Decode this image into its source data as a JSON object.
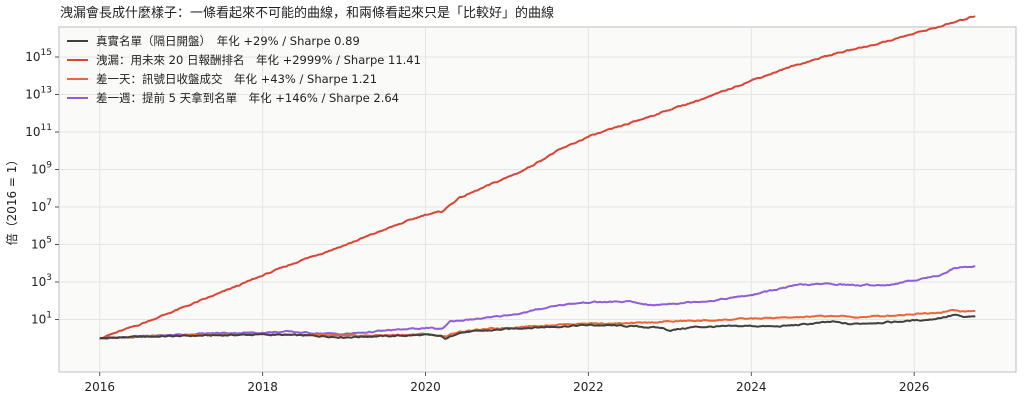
{
  "chart_data": {
    "type": "line",
    "title": "洩漏會長成什麼樣子：一條看起來不可能的曲線，和兩條看起來只是「比較好」的曲線",
    "xlabel": "",
    "ylabel": "倍（2016 = 1）",
    "yscale": "log",
    "xlim": [
      2015.5,
      2027.25
    ],
    "ylim_log10": [
      -1.8,
      16.6
    ],
    "x_ticks": [
      {
        "value": 2016,
        "label": "2016"
      },
      {
        "value": 2018,
        "label": "2018"
      },
      {
        "value": 2020,
        "label": "2020"
      },
      {
        "value": 2022,
        "label": "2022"
      },
      {
        "value": 2024,
        "label": "2024"
      },
      {
        "value": 2026,
        "label": "2026"
      }
    ],
    "y_ticks": [
      {
        "exp": 1,
        "base": "10",
        "sup": "1"
      },
      {
        "exp": 3,
        "base": "10",
        "sup": "3"
      },
      {
        "exp": 5,
        "base": "10",
        "sup": "5"
      },
      {
        "exp": 7,
        "base": "10",
        "sup": "7"
      },
      {
        "exp": 9,
        "base": "10",
        "sup": "9"
      },
      {
        "exp": 11,
        "base": "10",
        "sup": "11"
      },
      {
        "exp": 13,
        "base": "10",
        "sup": "13"
      },
      {
        "exp": 15,
        "base": "10",
        "sup": "15"
      }
    ],
    "grid": true,
    "legend_position": "top-left",
    "series": [
      {
        "name": "真實名單（隔日開盤）　年化 +29% / Sharpe 0.89",
        "color": "#404040",
        "points": [
          [
            2016.0,
            0
          ],
          [
            2016.5,
            0.08
          ],
          [
            2017.0,
            0.12
          ],
          [
            2017.5,
            0.16
          ],
          [
            2018.0,
            0.2
          ],
          [
            2018.5,
            0.15
          ],
          [
            2018.8,
            0.1
          ],
          [
            2019.0,
            0.05
          ],
          [
            2019.3,
            0.1
          ],
          [
            2019.6,
            0.12
          ],
          [
            2020.0,
            0.18
          ],
          [
            2020.2,
            0.1
          ],
          [
            2020.25,
            -0.05
          ],
          [
            2020.4,
            0.3
          ],
          [
            2020.8,
            0.42
          ],
          [
            2021.2,
            0.55
          ],
          [
            2021.6,
            0.62
          ],
          [
            2022.0,
            0.7
          ],
          [
            2022.3,
            0.68
          ],
          [
            2022.6,
            0.62
          ],
          [
            2022.9,
            0.55
          ],
          [
            2023.0,
            0.42
          ],
          [
            2023.3,
            0.6
          ],
          [
            2023.6,
            0.62
          ],
          [
            2024.0,
            0.66
          ],
          [
            2024.3,
            0.62
          ],
          [
            2024.6,
            0.72
          ],
          [
            2025.0,
            0.88
          ],
          [
            2025.2,
            0.75
          ],
          [
            2025.4,
            0.8
          ],
          [
            2025.8,
            0.88
          ],
          [
            2026.0,
            0.95
          ],
          [
            2026.2,
            1.0
          ],
          [
            2026.4,
            1.15
          ],
          [
            2026.5,
            1.25
          ],
          [
            2026.6,
            1.12
          ],
          [
            2026.75,
            1.15
          ]
        ]
      },
      {
        "name": "洩漏：用未來 20 日報酬排名　年化 +2999% / Sharpe 11.41",
        "color": "#d94535",
        "points": [
          [
            2016.0,
            0
          ],
          [
            2016.5,
            0.75
          ],
          [
            2017.0,
            1.6
          ],
          [
            2017.5,
            2.45
          ],
          [
            2018.0,
            3.35
          ],
          [
            2018.5,
            4.2
          ],
          [
            2019.0,
            4.95
          ],
          [
            2019.5,
            5.8
          ],
          [
            2020.0,
            6.6
          ],
          [
            2020.2,
            6.75
          ],
          [
            2020.4,
            7.45
          ],
          [
            2020.8,
            8.2
          ],
          [
            2021.2,
            8.95
          ],
          [
            2021.6,
            9.95
          ],
          [
            2022.0,
            10.75
          ],
          [
            2022.5,
            11.45
          ],
          [
            2023.0,
            12.2
          ],
          [
            2023.5,
            12.9
          ],
          [
            2024.0,
            13.75
          ],
          [
            2024.5,
            14.5
          ],
          [
            2025.0,
            15.15
          ],
          [
            2025.5,
            15.65
          ],
          [
            2026.0,
            16.25
          ],
          [
            2026.5,
            16.85
          ],
          [
            2026.75,
            17.2
          ]
        ]
      },
      {
        "name": "差一天：訊號日收盤成交　年化 +43% / Sharpe 1.21",
        "color": "#e8663a",
        "points": [
          [
            2016.0,
            0
          ],
          [
            2016.5,
            0.1
          ],
          [
            2017.0,
            0.16
          ],
          [
            2017.5,
            0.2
          ],
          [
            2018.0,
            0.22
          ],
          [
            2018.5,
            0.18
          ],
          [
            2019.0,
            0.12
          ],
          [
            2019.5,
            0.16
          ],
          [
            2020.0,
            0.22
          ],
          [
            2020.25,
            0.08
          ],
          [
            2020.4,
            0.35
          ],
          [
            2020.8,
            0.5
          ],
          [
            2021.2,
            0.62
          ],
          [
            2021.6,
            0.72
          ],
          [
            2022.0,
            0.8
          ],
          [
            2022.5,
            0.78
          ],
          [
            2023.0,
            0.9
          ],
          [
            2023.5,
            0.95
          ],
          [
            2024.0,
            1.05
          ],
          [
            2024.5,
            1.1
          ],
          [
            2025.0,
            1.2
          ],
          [
            2025.3,
            1.12
          ],
          [
            2025.7,
            1.2
          ],
          [
            2026.0,
            1.3
          ],
          [
            2026.3,
            1.38
          ],
          [
            2026.5,
            1.5
          ],
          [
            2026.6,
            1.42
          ],
          [
            2026.75,
            1.45
          ]
        ]
      },
      {
        "name": "差一週：提前 5 天拿到名單　年化 +146% / Sharpe 2.64",
        "color": "#8f5fd6",
        "points": [
          [
            2016.0,
            0
          ],
          [
            2016.5,
            0.1
          ],
          [
            2017.0,
            0.2
          ],
          [
            2017.5,
            0.28
          ],
          [
            2018.0,
            0.3
          ],
          [
            2018.3,
            0.35
          ],
          [
            2018.6,
            0.28
          ],
          [
            2019.0,
            0.22
          ],
          [
            2019.5,
            0.4
          ],
          [
            2020.0,
            0.55
          ],
          [
            2020.2,
            0.48
          ],
          [
            2020.3,
            0.9
          ],
          [
            2020.8,
            1.1
          ],
          [
            2021.2,
            1.35
          ],
          [
            2021.6,
            1.75
          ],
          [
            2022.0,
            1.92
          ],
          [
            2022.5,
            1.95
          ],
          [
            2022.8,
            1.75
          ],
          [
            2023.0,
            1.85
          ],
          [
            2023.5,
            2.0
          ],
          [
            2024.0,
            2.3
          ],
          [
            2024.3,
            2.6
          ],
          [
            2024.6,
            2.85
          ],
          [
            2025.0,
            2.9
          ],
          [
            2025.3,
            2.82
          ],
          [
            2025.7,
            2.85
          ],
          [
            2026.0,
            3.1
          ],
          [
            2026.3,
            3.35
          ],
          [
            2026.5,
            3.75
          ],
          [
            2026.75,
            3.85
          ]
        ]
      }
    ]
  }
}
